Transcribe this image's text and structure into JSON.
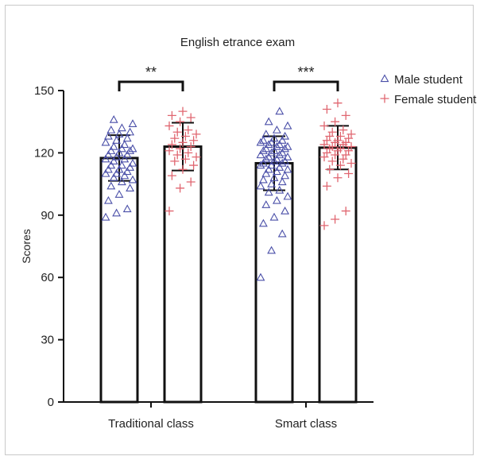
{
  "chart_data": {
    "type": "bar",
    "title": "English etrance exam",
    "xlabel": "",
    "ylabel": "Scores",
    "ylim": [
      0,
      150
    ],
    "yticks": [
      0,
      30,
      60,
      90,
      120,
      150
    ],
    "grid": false,
    "legend_position": "top-right",
    "categories": [
      "Traditional class",
      "Smart class"
    ],
    "series": [
      {
        "name": "Male student",
        "marker": "triangle",
        "color": "#4a4fa8",
        "values": [
          117.5,
          115
        ],
        "error": [
          11,
          13
        ],
        "points": [
          [
            89,
            91,
            93,
            97,
            100,
            103,
            104,
            106,
            107,
            108,
            109,
            110,
            110,
            111,
            112,
            112,
            113,
            114,
            114,
            115,
            116,
            117,
            117,
            118,
            119,
            119,
            120,
            121,
            121,
            122,
            122,
            123,
            124,
            125,
            126,
            127,
            128,
            129,
            130,
            131,
            132,
            134,
            136
          ],
          [
            60,
            73,
            81,
            86,
            89,
            92,
            95,
            97,
            99,
            101,
            102,
            104,
            105,
            106,
            107,
            108,
            109,
            110,
            111,
            112,
            112,
            113,
            114,
            114,
            115,
            115,
            116,
            116,
            117,
            117,
            118,
            118,
            119,
            119,
            120,
            120,
            121,
            121,
            122,
            122,
            123,
            123,
            124,
            124,
            125,
            125,
            126,
            126,
            127,
            128,
            129,
            131,
            133,
            135,
            140
          ]
        ]
      },
      {
        "name": "Female student",
        "marker": "plus",
        "color": "#e06670",
        "values": [
          123,
          122.5
        ],
        "error": [
          11.5,
          10.5
        ],
        "points": [
          [
            92,
            103,
            106,
            109,
            112,
            114,
            116,
            117,
            118,
            119,
            120,
            121,
            122,
            123,
            124,
            125,
            126,
            127,
            128,
            129,
            130,
            131,
            133,
            135,
            137,
            138,
            140
          ],
          [
            85,
            88,
            92,
            104,
            108,
            110,
            112,
            114,
            115,
            116,
            117,
            118,
            119,
            119,
            120,
            121,
            121,
            122,
            122,
            123,
            123,
            124,
            124,
            125,
            125,
            126,
            126,
            127,
            128,
            128,
            129,
            130,
            131,
            133,
            135,
            138,
            141,
            144
          ]
        ]
      }
    ],
    "annotations": [
      {
        "category": "Traditional class",
        "text": "**"
      },
      {
        "category": "Smart class",
        "text": "***"
      }
    ]
  }
}
